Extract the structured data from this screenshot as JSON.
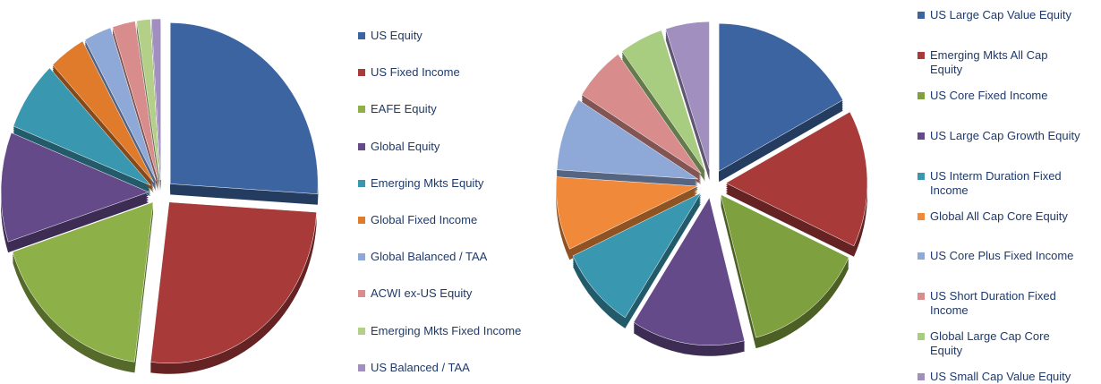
{
  "chart_data": [
    {
      "type": "pie",
      "categories": [
        "US Equity",
        "US Fixed Income",
        "EAFE Equity",
        "Global Equity",
        "Emerging Mkts Equity",
        "Global Fixed Income",
        "Global Balanced / TAA",
        "ACWI ex-US Equity",
        "Emerging Mkts Fixed Income",
        "US Balanced / TAA"
      ],
      "values": [
        26,
        26,
        18,
        11,
        7,
        4,
        3,
        2.5,
        1.5,
        1
      ],
      "colors": [
        "#3c64a0",
        "#a83a3a",
        "#8db048",
        "#654a8a",
        "#3a97b0",
        "#e07b2c",
        "#8ea8d8",
        "#d88c8b",
        "#b4cf88",
        "#a08fbf"
      ]
    },
    {
      "type": "pie",
      "categories": [
        "US Large Cap Value Equity",
        "Emerging Mkts All Cap Equity",
        "US Core Fixed Income",
        "US Large Cap Growth Equity",
        "US Interm Duration Fixed Income",
        "Global All Cap Core Equity",
        "US Core Plus Fixed Income",
        "US Short Duration Fixed Income",
        "Global Large Cap Core Equity",
        "US Small Cap Value Equity"
      ],
      "values": [
        17,
        15,
        14,
        13,
        9,
        8,
        8,
        6,
        5,
        5
      ],
      "colors": [
        "#3c64a0",
        "#a83a3a",
        "#7ea03e",
        "#654a8a",
        "#3a97b0",
        "#f08a3a",
        "#8ea8d8",
        "#d88c8b",
        "#a8cc80",
        "#a08fbf"
      ]
    }
  ]
}
